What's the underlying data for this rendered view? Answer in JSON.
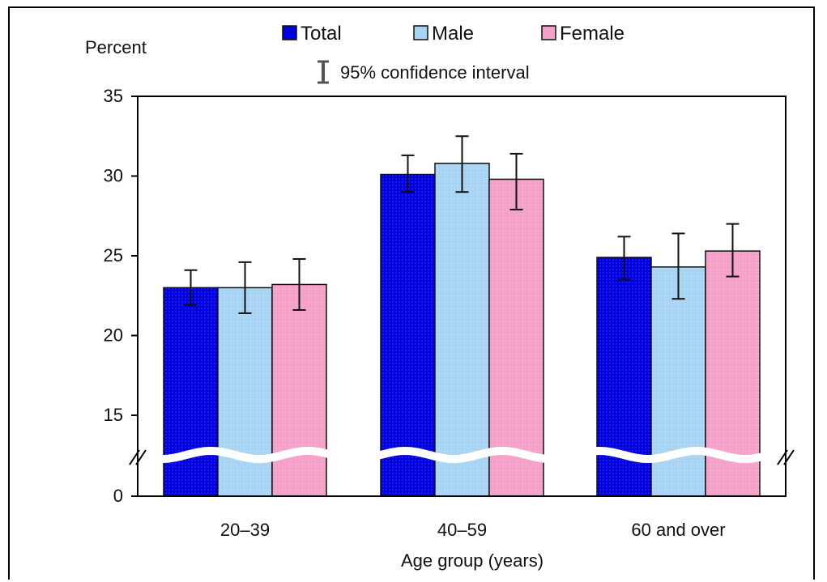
{
  "chart_data": {
    "type": "bar",
    "title": "",
    "ylabel": "Percent",
    "xlabel": "Age group (years)",
    "ylim": [
      0,
      35
    ],
    "yticks": [
      "35",
      "30",
      "25",
      "20",
      "15",
      "0"
    ],
    "axis_break": true,
    "categories": [
      "20–39",
      "40–59",
      "60 and over"
    ],
    "series": [
      {
        "name": "Total",
        "color": "#0000e0",
        "values": [
          23.0,
          30.1,
          24.9
        ],
        "ci_low": [
          21.9,
          29.0,
          23.5
        ],
        "ci_high": [
          24.1,
          31.3,
          26.2
        ]
      },
      {
        "name": "Male",
        "color": "#a8d4f4",
        "values": [
          23.0,
          30.8,
          24.3
        ],
        "ci_low": [
          21.4,
          29.0,
          22.3
        ],
        "ci_high": [
          24.6,
          32.5,
          26.4
        ]
      },
      {
        "name": "Female",
        "color": "#f4a0c8",
        "values": [
          23.2,
          29.8,
          25.3
        ],
        "ci_low": [
          21.6,
          27.9,
          23.7
        ],
        "ci_high": [
          24.8,
          31.4,
          27.0
        ]
      }
    ],
    "ci_legend": "95% confidence interval",
    "legend_position": "top-center",
    "grid": false
  }
}
